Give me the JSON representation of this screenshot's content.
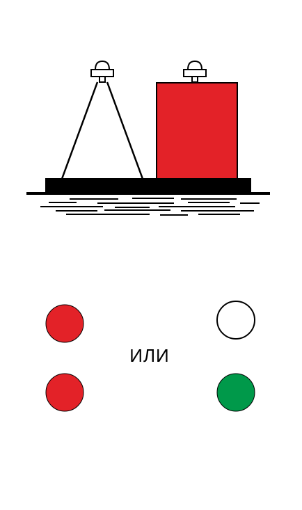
{
  "figure": {
    "or_label": "ИЛИ"
  },
  "colors": {
    "red": "#e32228",
    "white": "#ffffff",
    "green": "#00994a",
    "black": "#000000"
  },
  "icons": {
    "vessel": "barge-silhouette-icon",
    "lamp": "mast-light-icon"
  },
  "lights": {
    "left_option": [
      "red",
      "red"
    ],
    "right_option": [
      "white",
      "green"
    ]
  }
}
